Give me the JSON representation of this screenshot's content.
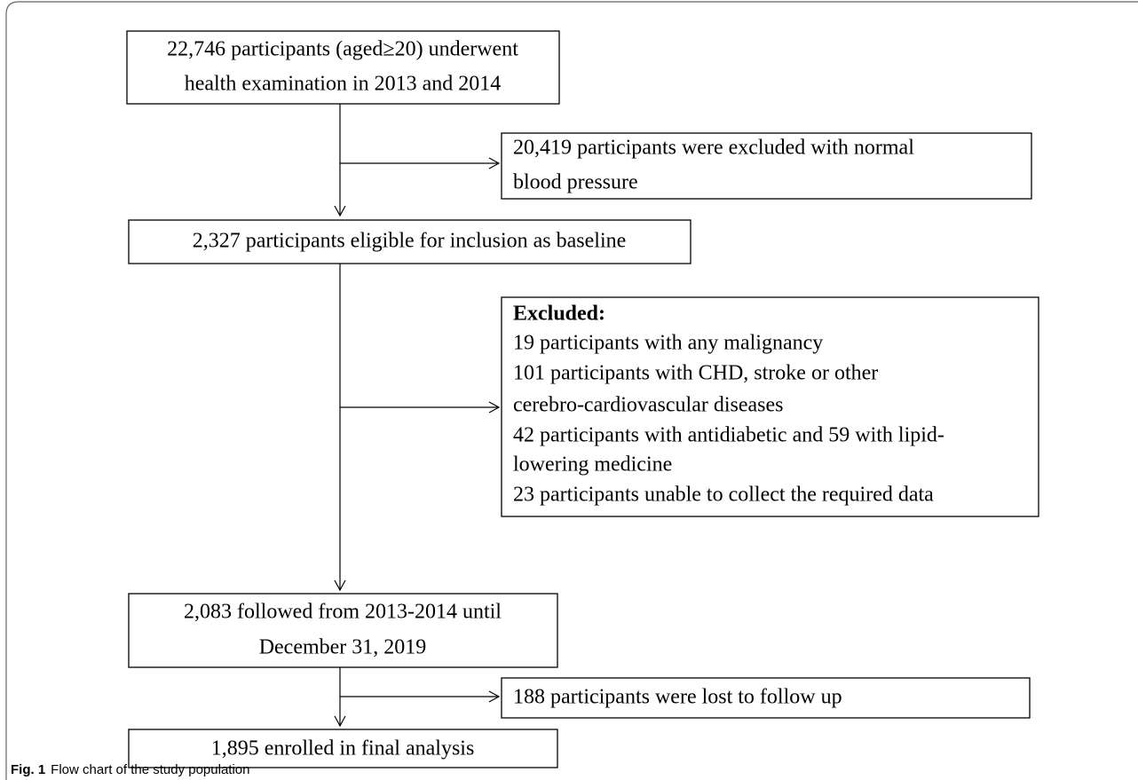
{
  "nodes": [
    {
      "lines": [
        "22,746 participants (aged≥20) underwent",
        "health examination in 2013 and 2014"
      ]
    },
    {
      "lines": [
        "20,419 participants were excluded with normal",
        "blood pressure"
      ]
    },
    {
      "lines": [
        "2,327 participants eligible for inclusion as baseline"
      ]
    },
    {
      "lines": [
        "Excluded:",
        "19 participants with any malignancy",
        "101 participants with CHD, stroke or other",
        "cerebro-cardiovascular diseases",
        "42 participants with antidiabetic and 59 with lipid-",
        "lowering medicine",
        "23 participants unable to collect the required data"
      ]
    },
    {
      "lines": [
        "2,083 followed from 2013-2014 until",
        "December 31, 2019"
      ]
    },
    {
      "lines": [
        "188 participants were lost to follow up"
      ]
    },
    {
      "lines": [
        "1,895 enrolled in final analysis"
      ]
    }
  ],
  "caption": {
    "label": "Fig. 1",
    "text": "Flow chart of the study population"
  }
}
